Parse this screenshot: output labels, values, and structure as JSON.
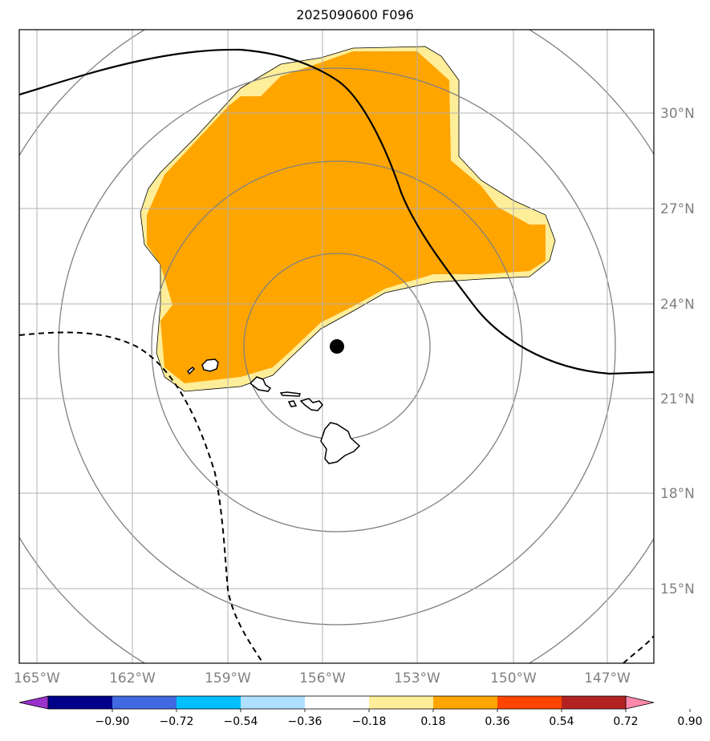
{
  "title": "2025090600 F096",
  "map": {
    "lon_ticks": [
      "165°W",
      "162°W",
      "159°W",
      "156°W",
      "153°W",
      "150°W",
      "147°W"
    ],
    "lat_ticks": [
      "30°N",
      "27°N",
      "24°N",
      "21°N",
      "18°N",
      "15°N"
    ],
    "storm_center": {
      "lon": -155.4,
      "lat": 22.7
    },
    "range_rings": 4,
    "fill_colors": {
      "light": "#ffee99",
      "mid": "#ffa500"
    },
    "line_color": "#000000",
    "ring_color": "#808080",
    "grid_color": "#b0b0b0"
  },
  "colorbar": {
    "labels": [
      "−0.90",
      "−0.72",
      "−0.54",
      "−0.36",
      "−0.18",
      "0.18",
      "0.36",
      "0.54",
      "0.72",
      "0.90"
    ],
    "colors": [
      "#9932cc",
      "#00008b",
      "#4169e1",
      "#00bfff",
      "#b0e0ff",
      "#ffffff",
      "#ffee99",
      "#ffa500",
      "#ff4500",
      "#b22222",
      "#ff88aa"
    ]
  }
}
